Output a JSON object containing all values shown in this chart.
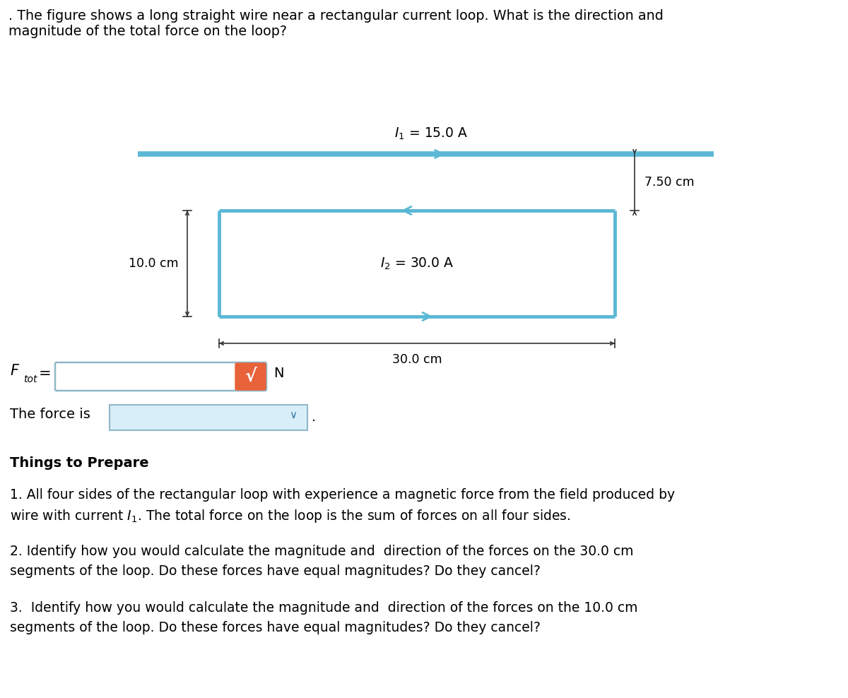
{
  "title_text1": ". The figure shows a long straight wire near a rectangular current loop. What is the direction and",
  "title_text2": "magnitude of the total force on the loop?",
  "wire_color": "#5BB8D4",
  "loop_color": "#5BB8D4",
  "wire_lw": 5.5,
  "loop_lw": 3.5,
  "I1_label": "$I_1$ = 15.0 A",
  "I2_label": "$I_2$ = 30.0 A",
  "dim_750": "7.50 cm",
  "dim_100": "10.0 cm",
  "dim_300": "30.0 cm",
  "N_label": "N",
  "force_is_label": "The force is",
  "things_header": "Things to Prepare",
  "bullet1a": "1. All four sides of the rectangular loop with experience a magnetic force from the field produced by",
  "bullet1b": "wire with current $I_1$. The total force on the loop is the sum of forces on all four sides.",
  "bullet2a": "2. Identify how you would calculate the magnitude and  direction of the forces on the 30.0 cm",
  "bullet2b": "segments of the loop. Do these forces have equal magnitudes? Do they cancel?",
  "bullet3a": "3.  Identify how you would calculate the magnitude and  direction of the forces on the 10.0 cm",
  "bullet3b": "segments of the loop. Do these forces have equal magnitudes? Do they cancel?",
  "bg_color": "#ffffff",
  "text_color": "#000000",
  "input_box_color": "#ffffff",
  "input_box_edge": "#90B8C8",
  "check_btn_color": "#E8623A",
  "dropdown_bg": "#D8EEF8",
  "dropdown_edge": "#90B8C8",
  "dim_color": "#333333",
  "arrow_color": "#5BB8D4"
}
